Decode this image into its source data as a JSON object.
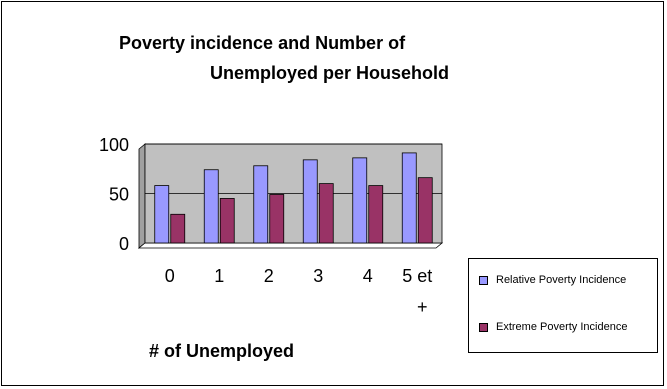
{
  "chart_data": {
    "type": "bar",
    "title": "Poverty incidence and Number of",
    "subtitle": "Unemployed per Household",
    "xlabel": "# of Unemployed",
    "ylabel": "",
    "categories": [
      "0",
      "1",
      "2",
      "3",
      "4",
      "5 et +"
    ],
    "category_lines": [
      [
        "0"
      ],
      [
        "1"
      ],
      [
        "2"
      ],
      [
        "3"
      ],
      [
        "4"
      ],
      [
        "5 et",
        "+"
      ]
    ],
    "series": [
      {
        "name": "Relative Poverty Incidence",
        "values": [
          58,
          74,
          78,
          84,
          86,
          91
        ],
        "color": "#9999ff"
      },
      {
        "name": "Extreme Poverty Incidence",
        "values": [
          29,
          45,
          49,
          60,
          58,
          66
        ],
        "color": "#993366"
      }
    ],
    "ylim": [
      0,
      100
    ],
    "yticks": [
      0,
      50,
      100
    ],
    "grid": true,
    "plot_background": "#c0c0c0",
    "legend_position": "bottom-right"
  }
}
